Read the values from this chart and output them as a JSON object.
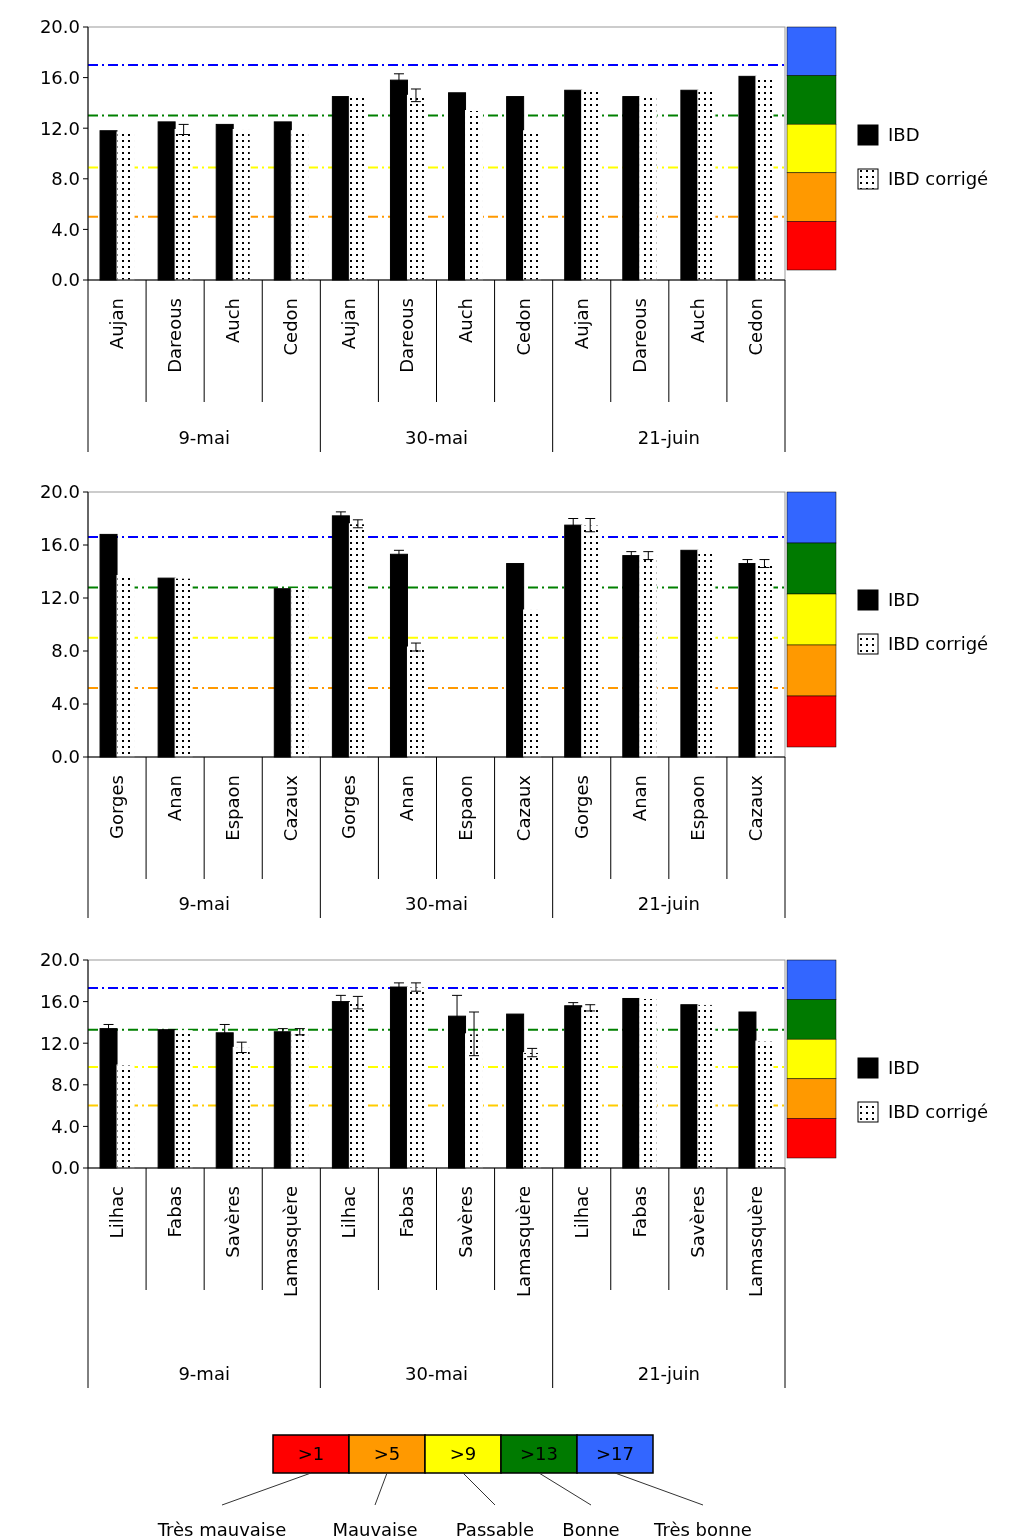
{
  "chart_data": [
    {
      "type": "bar",
      "categories": [
        "Aujan",
        "Dareous",
        "Auch",
        "Cedon",
        "Aujan",
        "Dareous",
        "Auch",
        "Cedon",
        "Aujan",
        "Dareous",
        "Auch",
        "Cedon"
      ],
      "annotations": [
        "9-mai",
        "30-mai",
        "21-juin"
      ],
      "series": [
        {
          "name": "IBD",
          "color": "#000000",
          "values": [
            11.8,
            12.5,
            12.3,
            12.5,
            14.5,
            15.8,
            14.8,
            14.5,
            15.0,
            14.5,
            15.0,
            16.1
          ],
          "errors": [
            null,
            null,
            null,
            null,
            null,
            0.5,
            null,
            null,
            null,
            null,
            null,
            null
          ]
        },
        {
          "name": "IBD corrigé",
          "color": "#ffffff",
          "values": [
            11.7,
            11.9,
            11.9,
            11.8,
            14.5,
            14.6,
            13.4,
            11.8,
            15.0,
            14.5,
            15.0,
            16.1
          ],
          "errors": [
            null,
            0.4,
            null,
            null,
            null,
            0.5,
            null,
            null,
            null,
            null,
            null,
            null
          ]
        }
      ],
      "ylim": [
        0,
        20
      ],
      "yticks": [
        {
          "value": 0,
          "label": "0.0"
        },
        {
          "value": 4,
          "label": "4.0"
        },
        {
          "value": 8,
          "label": "8.0"
        },
        {
          "value": 12,
          "label": "12.0"
        },
        {
          "value": 16,
          "label": "16.0"
        },
        {
          "value": 20,
          "label": "20.0"
        }
      ],
      "ref_lines": [
        {
          "axis": "y",
          "value": 17,
          "color": "#0000ff",
          "line_style": "dashed"
        },
        {
          "axis": "y",
          "value": 13,
          "color": "#008000",
          "line_style": "dashed"
        },
        {
          "axis": "y",
          "value": 8.9,
          "color": "#ffff00",
          "line_style": "dashed"
        },
        {
          "axis": "y",
          "value": 5,
          "color": "#ff9900",
          "line_style": "dashed"
        }
      ],
      "legend": "right"
    },
    {
      "type": "bar",
      "categories": [
        "Gorges",
        "Anan",
        "Espaon",
        "Cazaux",
        "Gorges",
        "Anan",
        "Espaon",
        "Cazaux",
        "Gorges",
        "Anan",
        "Espaon",
        "Cazaux"
      ],
      "annotations": [
        "9-mai",
        "30-mai",
        "21-juin"
      ],
      "series": [
        {
          "name": "IBD",
          "color": "#000000",
          "values": [
            16.8,
            13.5,
            null,
            12.7,
            18.2,
            15.3,
            null,
            14.6,
            17.5,
            15.2,
            15.6,
            14.6
          ],
          "errors": [
            null,
            null,
            null,
            null,
            0.3,
            0.3,
            null,
            null,
            0.5,
            0.3,
            null,
            0.3
          ]
        },
        {
          "name": "IBD corrigé",
          "color": "#ffffff",
          "values": [
            13.7,
            13.5,
            null,
            12.7,
            17.6,
            8.3,
            null,
            11.1,
            17.5,
            15.2,
            15.6,
            14.6
          ],
          "errors": [
            null,
            null,
            null,
            null,
            0.3,
            0.3,
            null,
            null,
            0.5,
            0.3,
            null,
            0.3
          ]
        }
      ],
      "ylim": [
        0,
        20
      ],
      "yticks": [
        {
          "value": 0,
          "label": "0.0"
        },
        {
          "value": 4,
          "label": "4.0"
        },
        {
          "value": 8,
          "label": "8.0"
        },
        {
          "value": 12,
          "label": "12.0"
        },
        {
          "value": 16,
          "label": "16.0"
        },
        {
          "value": 20,
          "label": "20.0"
        }
      ],
      "ref_lines": [
        {
          "axis": "y",
          "value": 16.6,
          "color": "#0000ff",
          "line_style": "dashed"
        },
        {
          "axis": "y",
          "value": 12.8,
          "color": "#008000",
          "line_style": "dashed"
        },
        {
          "axis": "y",
          "value": 9.0,
          "color": "#ffff00",
          "line_style": "dashed"
        },
        {
          "axis": "y",
          "value": 5.2,
          "color": "#ff9900",
          "line_style": "dashed"
        }
      ],
      "legend": "right"
    },
    {
      "type": "bar",
      "categories": [
        "Lilhac",
        "Fabas",
        "Savères",
        "Lamasquère",
        "Lilhac",
        "Fabas",
        "Savères",
        "Lamasquère",
        "Lilhac",
        "Fabas",
        "Savères",
        "Lamasquère"
      ],
      "annotations": [
        "9-mai",
        "30-mai",
        "21-juin"
      ],
      "series": [
        {
          "name": "IBD",
          "color": "#000000",
          "values": [
            13.4,
            13.3,
            13.0,
            13.1,
            16.0,
            17.4,
            14.6,
            14.8,
            15.6,
            16.3,
            15.7,
            15.0
          ],
          "errors": [
            0.4,
            null,
            0.8,
            0.3,
            0.6,
            0.4,
            2.0,
            null,
            0.3,
            null,
            null,
            null
          ]
        },
        {
          "name": "IBD corrigé",
          "color": "#ffffff",
          "values": [
            9.9,
            13.2,
            11.6,
            13.1,
            15.9,
            17.4,
            12.9,
            11.1,
            15.4,
            16.3,
            15.7,
            12.2
          ],
          "errors": [
            null,
            null,
            0.5,
            0.3,
            0.6,
            0.4,
            2.1,
            0.4,
            0.3,
            null,
            null,
            null
          ]
        }
      ],
      "ylim": [
        0,
        20
      ],
      "yticks": [
        {
          "value": 0,
          "label": "0.0"
        },
        {
          "value": 4,
          "label": "4.0"
        },
        {
          "value": 8,
          "label": "8.0"
        },
        {
          "value": 12,
          "label": "12.0"
        },
        {
          "value": 16,
          "label": "16.0"
        },
        {
          "value": 20,
          "label": "20.0"
        }
      ],
      "ref_lines": [
        {
          "axis": "y",
          "value": 17.3,
          "color": "#0000ff",
          "line_style": "dashed"
        },
        {
          "axis": "y",
          "value": 13.3,
          "color": "#008000",
          "line_style": "dashed"
        },
        {
          "axis": "y",
          "value": 9.7,
          "color": "#ffff00",
          "line_style": "dashed"
        },
        {
          "axis": "y",
          "value": 6.0,
          "color": "#ffcc00",
          "line_style": "dashed"
        }
      ],
      "legend": "right"
    },
    {
      "type": "other",
      "categories": [
        ">1",
        ">5",
        ">9",
        ">13",
        ">17"
      ],
      "colors": [
        "#ff0000",
        "#ff9900",
        "#ffff00",
        "#007a00",
        "#3366ff"
      ],
      "annotations": [
        "Très mauvaise",
        "Mauvaise",
        "Passable",
        "Bonne",
        "Très bonne"
      ]
    }
  ]
}
